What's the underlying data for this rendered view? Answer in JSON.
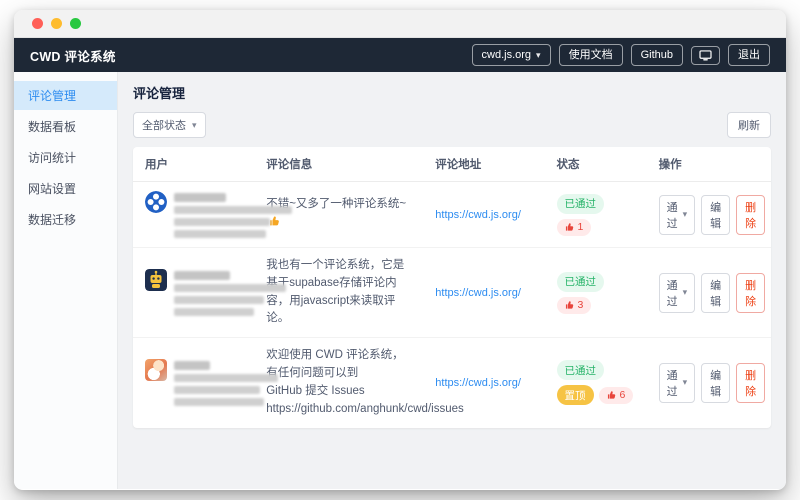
{
  "navbar": {
    "title": "CWD 评论系统",
    "site_select": {
      "value": "cwd.js.org"
    },
    "docs_button": "使用文档",
    "github_button": "Github",
    "logout_button": "退出"
  },
  "sidebar": {
    "items": [
      {
        "label": "评论管理",
        "active": true
      },
      {
        "label": "数据看板",
        "active": false
      },
      {
        "label": "访问统计",
        "active": false
      },
      {
        "label": "网站设置",
        "active": false
      },
      {
        "label": "数据迁移",
        "active": false
      }
    ]
  },
  "main": {
    "page_title": "评论管理",
    "filter_select": {
      "value": "全部状态"
    },
    "refresh_button": "刷新",
    "table": {
      "headers": [
        "用户",
        "评论信息",
        "评论地址",
        "状态",
        "操作"
      ],
      "action_labels": {
        "select": "通过",
        "edit": "编辑",
        "delete": "删除"
      },
      "status_labels": {
        "approved": "已通过",
        "pinned": "置顶"
      },
      "rows": [
        {
          "avatar": "clover-blue",
          "redacted": {
            "name_width": 52,
            "line_widths": [
              118,
              96,
              92
            ]
          },
          "comment_lines": [
            "不错~又多了一种评论系统~"
          ],
          "comment_emoji": "👍",
          "url": "https://cwd.js.org/",
          "approved": true,
          "pinned": false,
          "likes": "1"
        },
        {
          "avatar": "robot-navy",
          "redacted": {
            "name_width": 56,
            "line_widths": [
              112,
              90,
              80
            ]
          },
          "comment_lines": [
            "我也有一个评论系统，它是基于supabase存储评论内容，用javascript来读取评论。"
          ],
          "comment_emoji": "",
          "url": "https://cwd.js.org/",
          "approved": true,
          "pinned": false,
          "likes": "3"
        },
        {
          "avatar": "anime-girl",
          "redacted": {
            "name_width": 36,
            "line_widths": [
              104,
              86,
              90
            ]
          },
          "comment_lines": [
            "欢迎使用 CWD 评论系统，有任何问题可以到",
            "GitHub 提交 Issues",
            "https://github.com/anghunk/cwd/issues"
          ],
          "comment_emoji": "",
          "url": "https://cwd.js.org/",
          "approved": true,
          "pinned": true,
          "likes": "6"
        }
      ]
    }
  },
  "colors": {
    "navbar_bg": "#1e2836",
    "accent_blue": "#2d8cf0",
    "approved_green": "#28b46a",
    "pinned_yellow": "#f6c344",
    "like_red": "#e8453c",
    "sidebar_active_bg": "#d5eafb"
  }
}
